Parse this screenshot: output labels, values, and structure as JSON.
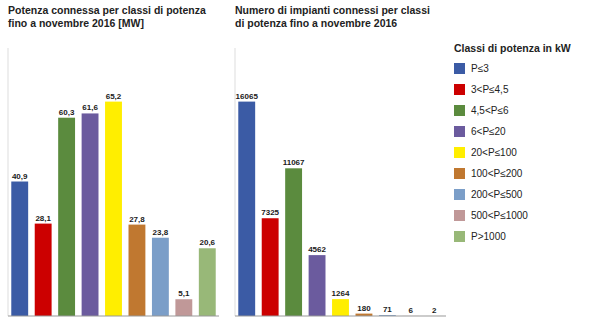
{
  "chart_data": [
    {
      "type": "bar",
      "title": "Potenza connessa per classi di potenza\nfino a novembre 2016 [MW]",
      "categories": [
        "P≤3",
        "3<P≤4,5",
        "4,5<P≤6",
        "6<P≤20",
        "20<P≤100",
        "100<P≤200",
        "200<P≤500",
        "500<P≤1000",
        "P>1000"
      ],
      "values": [
        40.9,
        28.1,
        60.3,
        61.6,
        65.2,
        27.8,
        23.8,
        5.1,
        20.6
      ],
      "value_labels": [
        "40,9",
        "28,1",
        "60,3",
        "61,6",
        "65,2",
        "27,8",
        "23,8",
        "5,1",
        "20,6"
      ],
      "colors": [
        "#3B5BA5",
        "#CC0000",
        "#5B8B3E",
        "#6B5B9E",
        "#FFEE00",
        "#C07830",
        "#7B9EC8",
        "#C09898",
        "#98B878"
      ],
      "ylim": [
        0,
        81.5
      ],
      "data_labels": true,
      "tick_labels": false
    },
    {
      "type": "bar",
      "title": "Numero di impianti connessi per classi\ndi potenza fino a novembre 2016",
      "categories": [
        "P≤3",
        "3<P≤4,5",
        "4,5<P≤6",
        "6<P≤20",
        "20<P≤100",
        "100<P≤200",
        "200<P≤500",
        "500<P≤1000",
        "P>1000"
      ],
      "values": [
        16065,
        7325,
        11067,
        4562,
        1264,
        180,
        71,
        6,
        2
      ],
      "colors": [
        "#3B5BA5",
        "#CC0000",
        "#5B8B3E",
        "#6B5B9E",
        "#FFEE00",
        "#C07830",
        "#7B9EC8",
        "#C09898",
        "#98B878"
      ],
      "ylim": [
        0,
        20081.25
      ],
      "data_labels": true,
      "tick_labels": false,
      "legend": "right",
      "legend_title": "Classi di potenza in kW"
    }
  ]
}
